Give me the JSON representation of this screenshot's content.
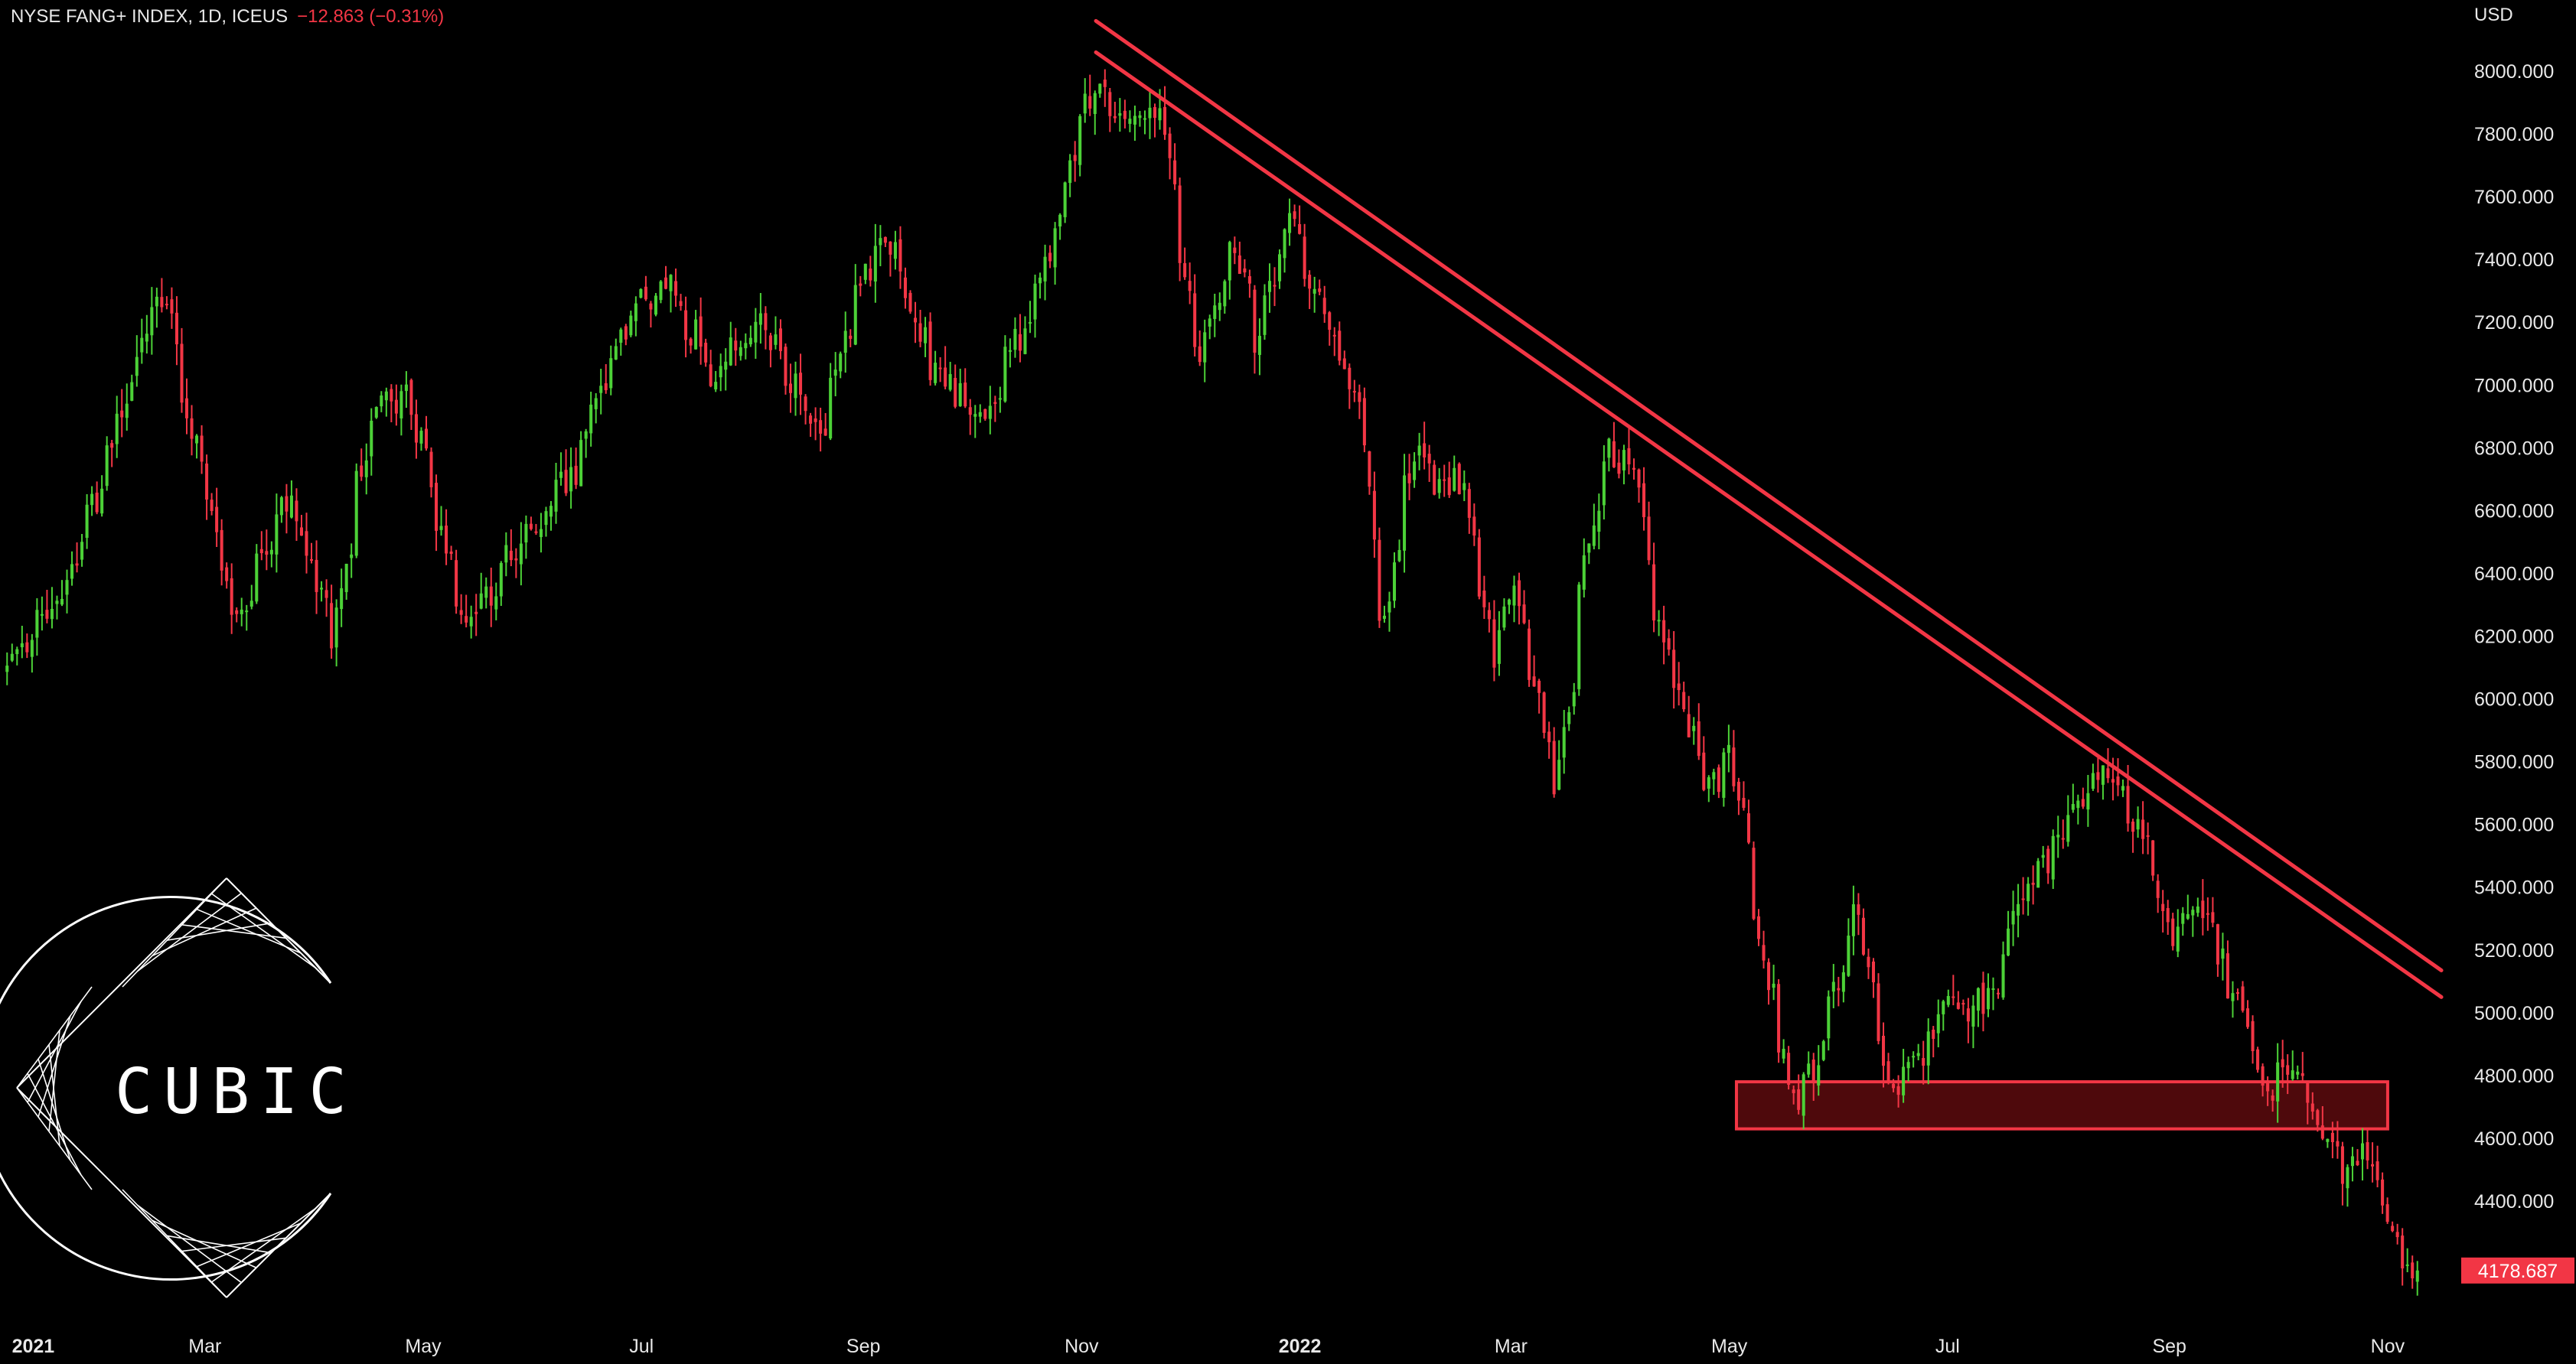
{
  "header": {
    "symbol": "NYSE FANG+ INDEX, 1D, ICEUS",
    "change": "−12.863 (−0.31%)"
  },
  "currency": "USD",
  "logo": {
    "text": "CUBIC",
    "icon": "cubic-geometric-logo"
  },
  "colors": {
    "background": "#000000",
    "up": "#4cd137",
    "down": "#f23645",
    "trendline": "#f23645",
    "zone_fill": "#5c0a0e",
    "price_badge": "#f23645"
  },
  "chart_data": {
    "type": "candlestick",
    "symbol": "NYSE FANG+ INDEX",
    "interval": "1D",
    "exchange": "ICEUS",
    "ylim": [
      4100,
      8200
    ],
    "y_ticks": [
      4400,
      4600,
      4800,
      5000,
      5200,
      5400,
      5600,
      5800,
      6000,
      6200,
      6400,
      6600,
      6800,
      7000,
      7200,
      7400,
      7600,
      7800,
      8000
    ],
    "y_tick_labels": [
      "4400.000",
      "4600.000",
      "4800.000",
      "5000.000",
      "5200.000",
      "5400.000",
      "5600.000",
      "5800.000",
      "6000.000",
      "6200.000",
      "6400.000",
      "6600.000",
      "6800.000",
      "7000.000",
      "7200.000",
      "7400.000",
      "7600.000",
      "7800.000",
      "8000.000"
    ],
    "x_range": [
      "2021-01-04",
      "2022-11-10"
    ],
    "x_ticks": [
      {
        "date": "2021-01-12",
        "label": "2021",
        "bold": true
      },
      {
        "date": "2021-03-01",
        "label": "Mar"
      },
      {
        "date": "2021-05-01",
        "label": "May"
      },
      {
        "date": "2021-07-01",
        "label": "Jul"
      },
      {
        "date": "2021-09-01",
        "label": "Sep"
      },
      {
        "date": "2021-11-01",
        "label": "Nov"
      },
      {
        "date": "2022-01-01",
        "label": "2022",
        "bold": true
      },
      {
        "date": "2022-03-01",
        "label": "Mar"
      },
      {
        "date": "2022-05-01",
        "label": "May"
      },
      {
        "date": "2022-07-01",
        "label": "Jul"
      },
      {
        "date": "2022-09-01",
        "label": "Sep"
      },
      {
        "date": "2022-11-01",
        "label": "Nov"
      }
    ],
    "close_path": [
      [
        "2021-01-04",
        6150
      ],
      [
        "2021-01-20",
        6350
      ],
      [
        "2021-02-12",
        7200
      ],
      [
        "2021-02-16",
        7300
      ],
      [
        "2021-03-08",
        6250
      ],
      [
        "2021-03-23",
        6650
      ],
      [
        "2021-04-05",
        6200
      ],
      [
        "2021-04-16",
        6950
      ],
      [
        "2021-04-26",
        6950
      ],
      [
        "2021-05-12",
        6200
      ],
      [
        "2021-05-24",
        6450
      ],
      [
        "2021-06-10",
        6700
      ],
      [
        "2021-06-28",
        7250
      ],
      [
        "2021-07-08",
        7300
      ],
      [
        "2021-07-20",
        7050
      ],
      [
        "2021-08-02",
        7200
      ],
      [
        "2021-08-19",
        6850
      ],
      [
        "2021-08-30",
        7300
      ],
      [
        "2021-09-07",
        7500
      ],
      [
        "2021-09-20",
        7050
      ],
      [
        "2021-10-04",
        6900
      ],
      [
        "2021-10-18",
        7250
      ],
      [
        "2021-11-05",
        8000
      ],
      [
        "2021-11-10",
        7850
      ],
      [
        "2021-11-22",
        7900
      ],
      [
        "2021-12-03",
        7100
      ],
      [
        "2021-12-13",
        7450
      ],
      [
        "2021-12-20",
        7150
      ],
      [
        "2021-12-29",
        7550
      ],
      [
        "2022-01-10",
        7150
      ],
      [
        "2022-01-18",
        6900
      ],
      [
        "2022-01-24",
        6200
      ],
      [
        "2022-02-02",
        6800
      ],
      [
        "2022-02-10",
        6650
      ],
      [
        "2022-02-15",
        6700
      ],
      [
        "2022-02-24",
        6150
      ],
      [
        "2022-03-03",
        6350
      ],
      [
        "2022-03-14",
        5700
      ],
      [
        "2022-03-24",
        6600
      ],
      [
        "2022-03-29",
        6800
      ],
      [
        "2022-04-05",
        6700
      ],
      [
        "2022-04-13",
        6150
      ],
      [
        "2022-04-26",
        5700
      ],
      [
        "2022-05-02",
        5850
      ],
      [
        "2022-05-11",
        5150
      ],
      [
        "2022-05-20",
        4700
      ],
      [
        "2022-05-24",
        4800
      ],
      [
        "2022-05-31",
        5050
      ],
      [
        "2022-06-06",
        5350
      ],
      [
        "2022-06-16",
        4750
      ],
      [
        "2022-06-22",
        4850
      ],
      [
        "2022-07-01",
        5000
      ],
      [
        "2022-07-14",
        5050
      ],
      [
        "2022-07-22",
        5350
      ],
      [
        "2022-08-01",
        5550
      ],
      [
        "2022-08-15",
        5800
      ],
      [
        "2022-08-25",
        5550
      ],
      [
        "2022-09-02",
        5250
      ],
      [
        "2022-09-12",
        5300
      ],
      [
        "2022-09-20",
        5050
      ],
      [
        "2022-09-30",
        4750
      ],
      [
        "2022-10-07",
        4850
      ],
      [
        "2022-10-13",
        4650
      ],
      [
        "2022-10-20",
        4500
      ],
      [
        "2022-10-27",
        4550
      ],
      [
        "2022-11-03",
        4350
      ],
      [
        "2022-11-09",
        4178.687
      ]
    ],
    "trendlines": [
      {
        "from": [
          "2021-11-05",
          8160
        ],
        "to": [
          "2022-11-16",
          5135
        ]
      },
      {
        "from": [
          "2021-11-05",
          8060
        ],
        "to": [
          "2022-11-16",
          5050
        ]
      }
    ],
    "zones": [
      {
        "x0": "2022-05-03",
        "x1": "2022-11-01",
        "y0": 4630,
        "y1": 4780
      }
    ],
    "last_price": 4178.687,
    "last_price_label": "4178.687"
  }
}
